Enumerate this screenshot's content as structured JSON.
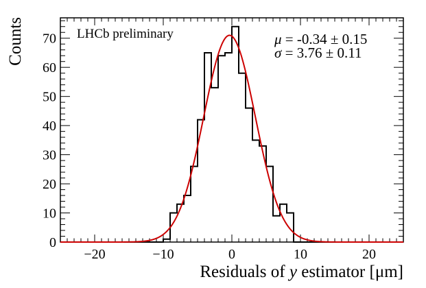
{
  "chart_data": {
    "type": "histogram",
    "title": "",
    "annotation": "LHCb preliminary",
    "xlabel_prefix": "Residuals of ",
    "xlabel_var": "y",
    "xlabel_suffix": " estimator [μm]",
    "ylabel": "Counts",
    "xlim": [
      -25,
      25
    ],
    "ylim": [
      0,
      77
    ],
    "x_ticks": [
      -20,
      -10,
      0,
      10,
      20
    ],
    "x_tick_labels": [
      "−20",
      "−10",
      "0",
      "10",
      "20"
    ],
    "y_ticks": [
      0,
      10,
      20,
      30,
      40,
      50,
      60,
      70
    ],
    "y_tick_labels": [
      "0",
      "10",
      "20",
      "30",
      "40",
      "50",
      "60",
      "70"
    ],
    "bin_width": 1,
    "bins": [
      {
        "x0": -10,
        "count": 1
      },
      {
        "x0": -9,
        "count": 10
      },
      {
        "x0": -8,
        "count": 13
      },
      {
        "x0": -7,
        "count": 16
      },
      {
        "x0": -6,
        "count": 26
      },
      {
        "x0": -5,
        "count": 42
      },
      {
        "x0": -4,
        "count": 65
      },
      {
        "x0": -3,
        "count": 53
      },
      {
        "x0": -2,
        "count": 64
      },
      {
        "x0": -1,
        "count": 65
      },
      {
        "x0": 0,
        "count": 74
      },
      {
        "x0": 1,
        "count": 58
      },
      {
        "x0": 2,
        "count": 46
      },
      {
        "x0": 3,
        "count": 35
      },
      {
        "x0": 4,
        "count": 33
      },
      {
        "x0": 5,
        "count": 26
      },
      {
        "x0": 6,
        "count": 9
      },
      {
        "x0": 7,
        "count": 13
      },
      {
        "x0": 8,
        "count": 10
      },
      {
        "x0": 9,
        "count": 0
      }
    ],
    "fit": {
      "type": "gaussian",
      "mu": -0.34,
      "sigma": 3.76,
      "amplitude": 71,
      "color": "#cc0000"
    },
    "stats": {
      "mu_symbol": "μ",
      "mu_text": " = -0.34 ± 0.15",
      "sigma_symbol": "σ",
      "sigma_text": " = 3.76 ± 0.11"
    },
    "histogram_color": "#000000"
  }
}
